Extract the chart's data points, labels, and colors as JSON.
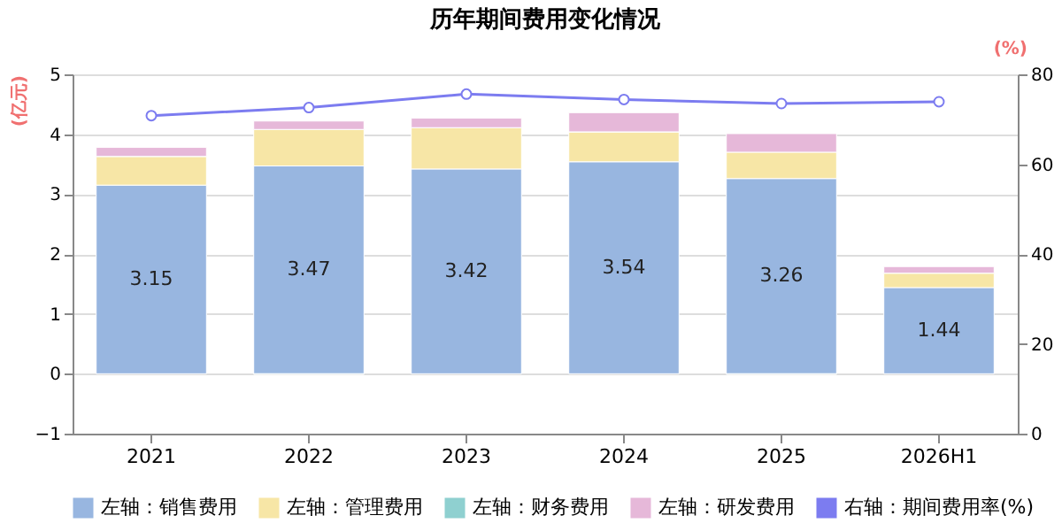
{
  "chart_data": {
    "type": "bar",
    "title": "历年期间费用变化情况",
    "ylabel": "(亿元)",
    "y2label": "(%)",
    "stacked": true,
    "categories": [
      "2021",
      "2022",
      "2023",
      "2024",
      "2025",
      "2026H1"
    ],
    "series": [
      {
        "name": "左轴：销售费用",
        "color": "#98b6e0",
        "values": [
          3.15,
          3.47,
          3.42,
          3.54,
          3.26,
          1.44
        ],
        "value_labels": [
          "3.15",
          "3.47",
          "3.42",
          "3.54",
          "3.26",
          "1.44"
        ]
      },
      {
        "name": "左轴：管理费用",
        "color": "#f7e6a6",
        "values": [
          0.48,
          0.61,
          0.69,
          0.5,
          0.44,
          0.24
        ]
      },
      {
        "name": "左轴：财务费用",
        "color": "#8fd0d0",
        "values": [
          0,
          -0.01,
          0,
          0,
          -0.01,
          0
        ]
      },
      {
        "name": "左轴：研发费用",
        "color": "#e6b8d9",
        "values": [
          0.15,
          0.14,
          0.16,
          0.32,
          0.31,
          0.11
        ]
      },
      {
        "name": "右轴：期间费用率(%)",
        "type": "line",
        "axis": "y2",
        "marker": "circle",
        "color": "#7c7cf0",
        "values": [
          70.8,
          72.6,
          75.6,
          74.4,
          73.5,
          73.9
        ]
      }
    ],
    "ylim": [
      -1,
      5
    ],
    "yticks": [
      -1,
      0,
      1,
      2,
      3,
      4,
      5
    ],
    "y2lim": [
      0,
      80
    ],
    "y2ticks": [
      0,
      20,
      40,
      60,
      80
    ],
    "grid": "y",
    "legend": "bottom"
  }
}
